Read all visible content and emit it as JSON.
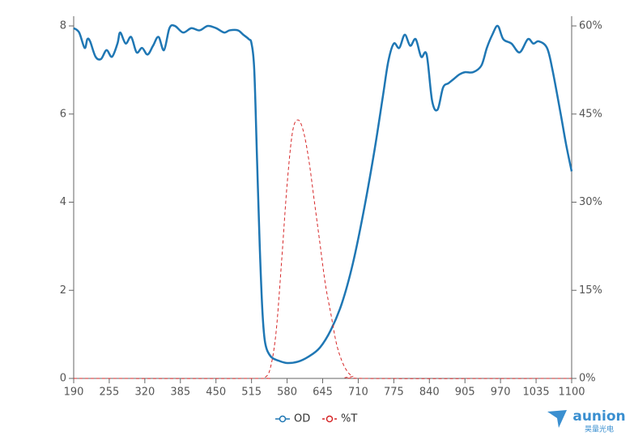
{
  "chart_data": {
    "type": "line",
    "xlim": [
      190,
      1100
    ],
    "xticks": [
      190,
      255,
      320,
      385,
      450,
      515,
      580,
      645,
      710,
      775,
      840,
      905,
      970,
      1035,
      1100
    ],
    "ylim": [
      0,
      8
    ],
    "yticks": [
      0,
      2,
      4,
      6,
      8
    ],
    "y2lim": [
      0,
      60
    ],
    "y2ticks": [
      {
        "value": 0,
        "label": "0%"
      },
      {
        "value": 15,
        "label": "15%"
      },
      {
        "value": 30,
        "label": "30%"
      },
      {
        "value": 45,
        "label": "45%"
      },
      {
        "value": 60,
        "label": "60%"
      }
    ],
    "legend": "bottom",
    "series": [
      {
        "name": "OD",
        "color": "#1f77b4",
        "dashed": false,
        "x": [
          190,
          200,
          210,
          215,
          220,
          230,
          240,
          250,
          260,
          270,
          275,
          285,
          295,
          305,
          315,
          325,
          335,
          345,
          355,
          365,
          375,
          390,
          405,
          420,
          435,
          450,
          465,
          475,
          490,
          500,
          510,
          515,
          520,
          525,
          530,
          535,
          540,
          550,
          565,
          580,
          600,
          620,
          640,
          660,
          680,
          700,
          720,
          740,
          755,
          765,
          775,
          785,
          795,
          805,
          815,
          825,
          835,
          845,
          855,
          865,
          875,
          885,
          895,
          905,
          920,
          935,
          945,
          955,
          965,
          975,
          990,
          1005,
          1020,
          1030,
          1040,
          1055,
          1065,
          1080,
          1090,
          1100
        ],
        "values": [
          7.95,
          7.85,
          7.5,
          7.7,
          7.65,
          7.3,
          7.25,
          7.45,
          7.3,
          7.6,
          7.85,
          7.6,
          7.75,
          7.4,
          7.5,
          7.35,
          7.55,
          7.75,
          7.45,
          7.95,
          8.0,
          7.85,
          7.95,
          7.9,
          8.0,
          7.95,
          7.85,
          7.9,
          7.9,
          7.8,
          7.7,
          7.6,
          7.0,
          5.0,
          3.0,
          1.5,
          0.8,
          0.5,
          0.4,
          0.35,
          0.38,
          0.5,
          0.7,
          1.1,
          1.7,
          2.6,
          3.8,
          5.2,
          6.4,
          7.2,
          7.6,
          7.5,
          7.8,
          7.55,
          7.7,
          7.3,
          7.35,
          6.3,
          6.1,
          6.6,
          6.7,
          6.8,
          6.9,
          6.95,
          6.95,
          7.1,
          7.5,
          7.8,
          8.0,
          7.7,
          7.6,
          7.4,
          7.7,
          7.6,
          7.65,
          7.5,
          7.0,
          6.0,
          5.3,
          4.7
        ]
      },
      {
        "name": "%T",
        "color": "#d62728",
        "dashed": true,
        "axis": "y2",
        "x": [
          190,
          520,
          540,
          550,
          560,
          570,
          580,
          590,
          600,
          610,
          620,
          630,
          640,
          650,
          660,
          670,
          680,
          690,
          700,
          720,
          1100
        ],
        "values": [
          0,
          0,
          0.2,
          2,
          8,
          20,
          33,
          42,
          44,
          42,
          37,
          30,
          23,
          16,
          11,
          6,
          3,
          1.2,
          0.4,
          0,
          0
        ]
      }
    ],
    "logo_text": "aunion",
    "logo_subtext": "昊量光电"
  }
}
